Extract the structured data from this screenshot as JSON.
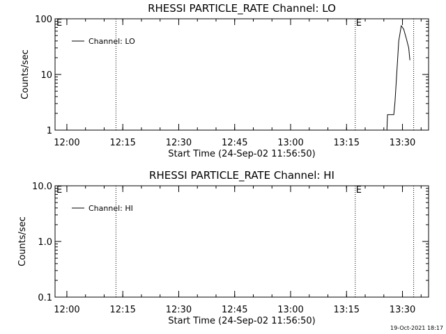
{
  "chart_data": [
    {
      "type": "line",
      "title": "RHESSI PARTICLE_RATE Channel: LO",
      "xlabel": "Start Time (24-Sep-02 11:56:50)",
      "ylabel": "Counts/sec",
      "x_tick_labels": [
        "12:00",
        "12:15",
        "12:30",
        "12:45",
        "13:00",
        "13:15",
        "13:30"
      ],
      "y_tick_labels": [
        "1",
        "10",
        "100"
      ],
      "y_scale": "log",
      "ylim": [
        1,
        100
      ],
      "xlim": [
        "11:56:50",
        "13:37:00"
      ],
      "legend": {
        "position": "top-left",
        "entries": [
          "Channel: LO"
        ]
      },
      "markers": [
        {
          "x": "12:13:10",
          "label": ""
        },
        {
          "x": "13:17:20",
          "label": "E"
        },
        {
          "x": "13:33:00",
          "label": ""
        }
      ],
      "corner_label": "E",
      "series": [
        {
          "name": "Channel: LO",
          "points": [
            [
              "13:25:50",
              1.0
            ],
            [
              "13:26:00",
              1.9
            ],
            [
              "13:27:40",
              1.9
            ],
            [
              "13:28:00",
              3.2
            ],
            [
              "13:29:00",
              40
            ],
            [
              "13:29:40",
              75
            ],
            [
              "13:30:20",
              65
            ],
            [
              "13:31:00",
              45
            ],
            [
              "13:31:40",
              30
            ],
            [
              "13:32:00",
              18
            ]
          ]
        }
      ]
    },
    {
      "type": "line",
      "title": "RHESSI PARTICLE_RATE Channel: HI",
      "xlabel": "Start Time (24-Sep-02 11:56:50)",
      "ylabel": "Counts/sec",
      "x_tick_labels": [
        "12:00",
        "12:15",
        "12:30",
        "12:45",
        "13:00",
        "13:15",
        "13:30"
      ],
      "y_tick_labels": [
        "0.1",
        "1.0",
        "10.0"
      ],
      "y_scale": "log",
      "ylim": [
        0.1,
        10
      ],
      "xlim": [
        "11:56:50",
        "13:37:00"
      ],
      "legend": {
        "position": "top-left",
        "entries": [
          "Channel: HI"
        ]
      },
      "markers": [
        {
          "x": "12:13:10",
          "label": ""
        },
        {
          "x": "13:17:20",
          "label": "E"
        },
        {
          "x": "13:33:00",
          "label": ""
        }
      ],
      "corner_label": "E",
      "series": [
        {
          "name": "Channel: HI",
          "points": []
        }
      ]
    }
  ],
  "footer": {
    "timestamp": "19-Oct-2021 18:17"
  }
}
